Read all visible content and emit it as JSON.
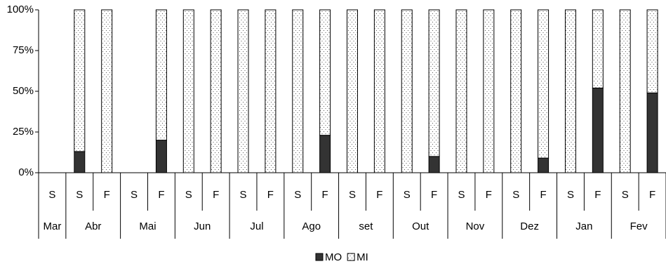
{
  "chart_data": {
    "type": "stacked_bar_100",
    "groups": [
      {
        "label": "Mar",
        "categories": [
          "S"
        ]
      },
      {
        "label": "Abr",
        "categories": [
          "S",
          "F"
        ]
      },
      {
        "label": "Mai",
        "categories": [
          "S",
          "F"
        ]
      },
      {
        "label": "Jun",
        "categories": [
          "S",
          "F"
        ]
      },
      {
        "label": "Jul",
        "categories": [
          "S",
          "F"
        ]
      },
      {
        "label": "Ago",
        "categories": [
          "S",
          "F"
        ]
      },
      {
        "label": "set",
        "categories": [
          "S",
          "F"
        ]
      },
      {
        "label": "Out",
        "categories": [
          "S",
          "F"
        ]
      },
      {
        "label": "Nov",
        "categories": [
          "S",
          "F"
        ]
      },
      {
        "label": "Dez",
        "categories": [
          "S",
          "F"
        ]
      },
      {
        "label": "Jan",
        "categories": [
          "S",
          "F"
        ]
      },
      {
        "label": "Fev",
        "categories": [
          "S",
          "F"
        ]
      }
    ],
    "series": [
      {
        "name": "MO",
        "color": "#333333",
        "values": [
          null,
          13,
          0,
          null,
          20,
          0,
          0,
          0,
          0,
          0,
          23,
          0,
          0,
          0,
          10,
          0,
          0,
          0,
          9,
          0,
          52,
          0,
          49
        ]
      },
      {
        "name": "MI",
        "color": "#ffffff",
        "pattern": "dots",
        "values": [
          null,
          87,
          100,
          null,
          80,
          100,
          100,
          100,
          100,
          100,
          77,
          100,
          100,
          100,
          90,
          100,
          100,
          100,
          91,
          100,
          48,
          100,
          51
        ]
      }
    ],
    "ylim": [
      0,
      100
    ],
    "yticks": [
      {
        "value": 0,
        "label": "0%"
      },
      {
        "value": 25,
        "label": "25%"
      },
      {
        "value": 50,
        "label": "50%"
      },
      {
        "value": 75,
        "label": "75%"
      },
      {
        "value": 100,
        "label": "100%"
      }
    ],
    "legend": "bottom"
  }
}
